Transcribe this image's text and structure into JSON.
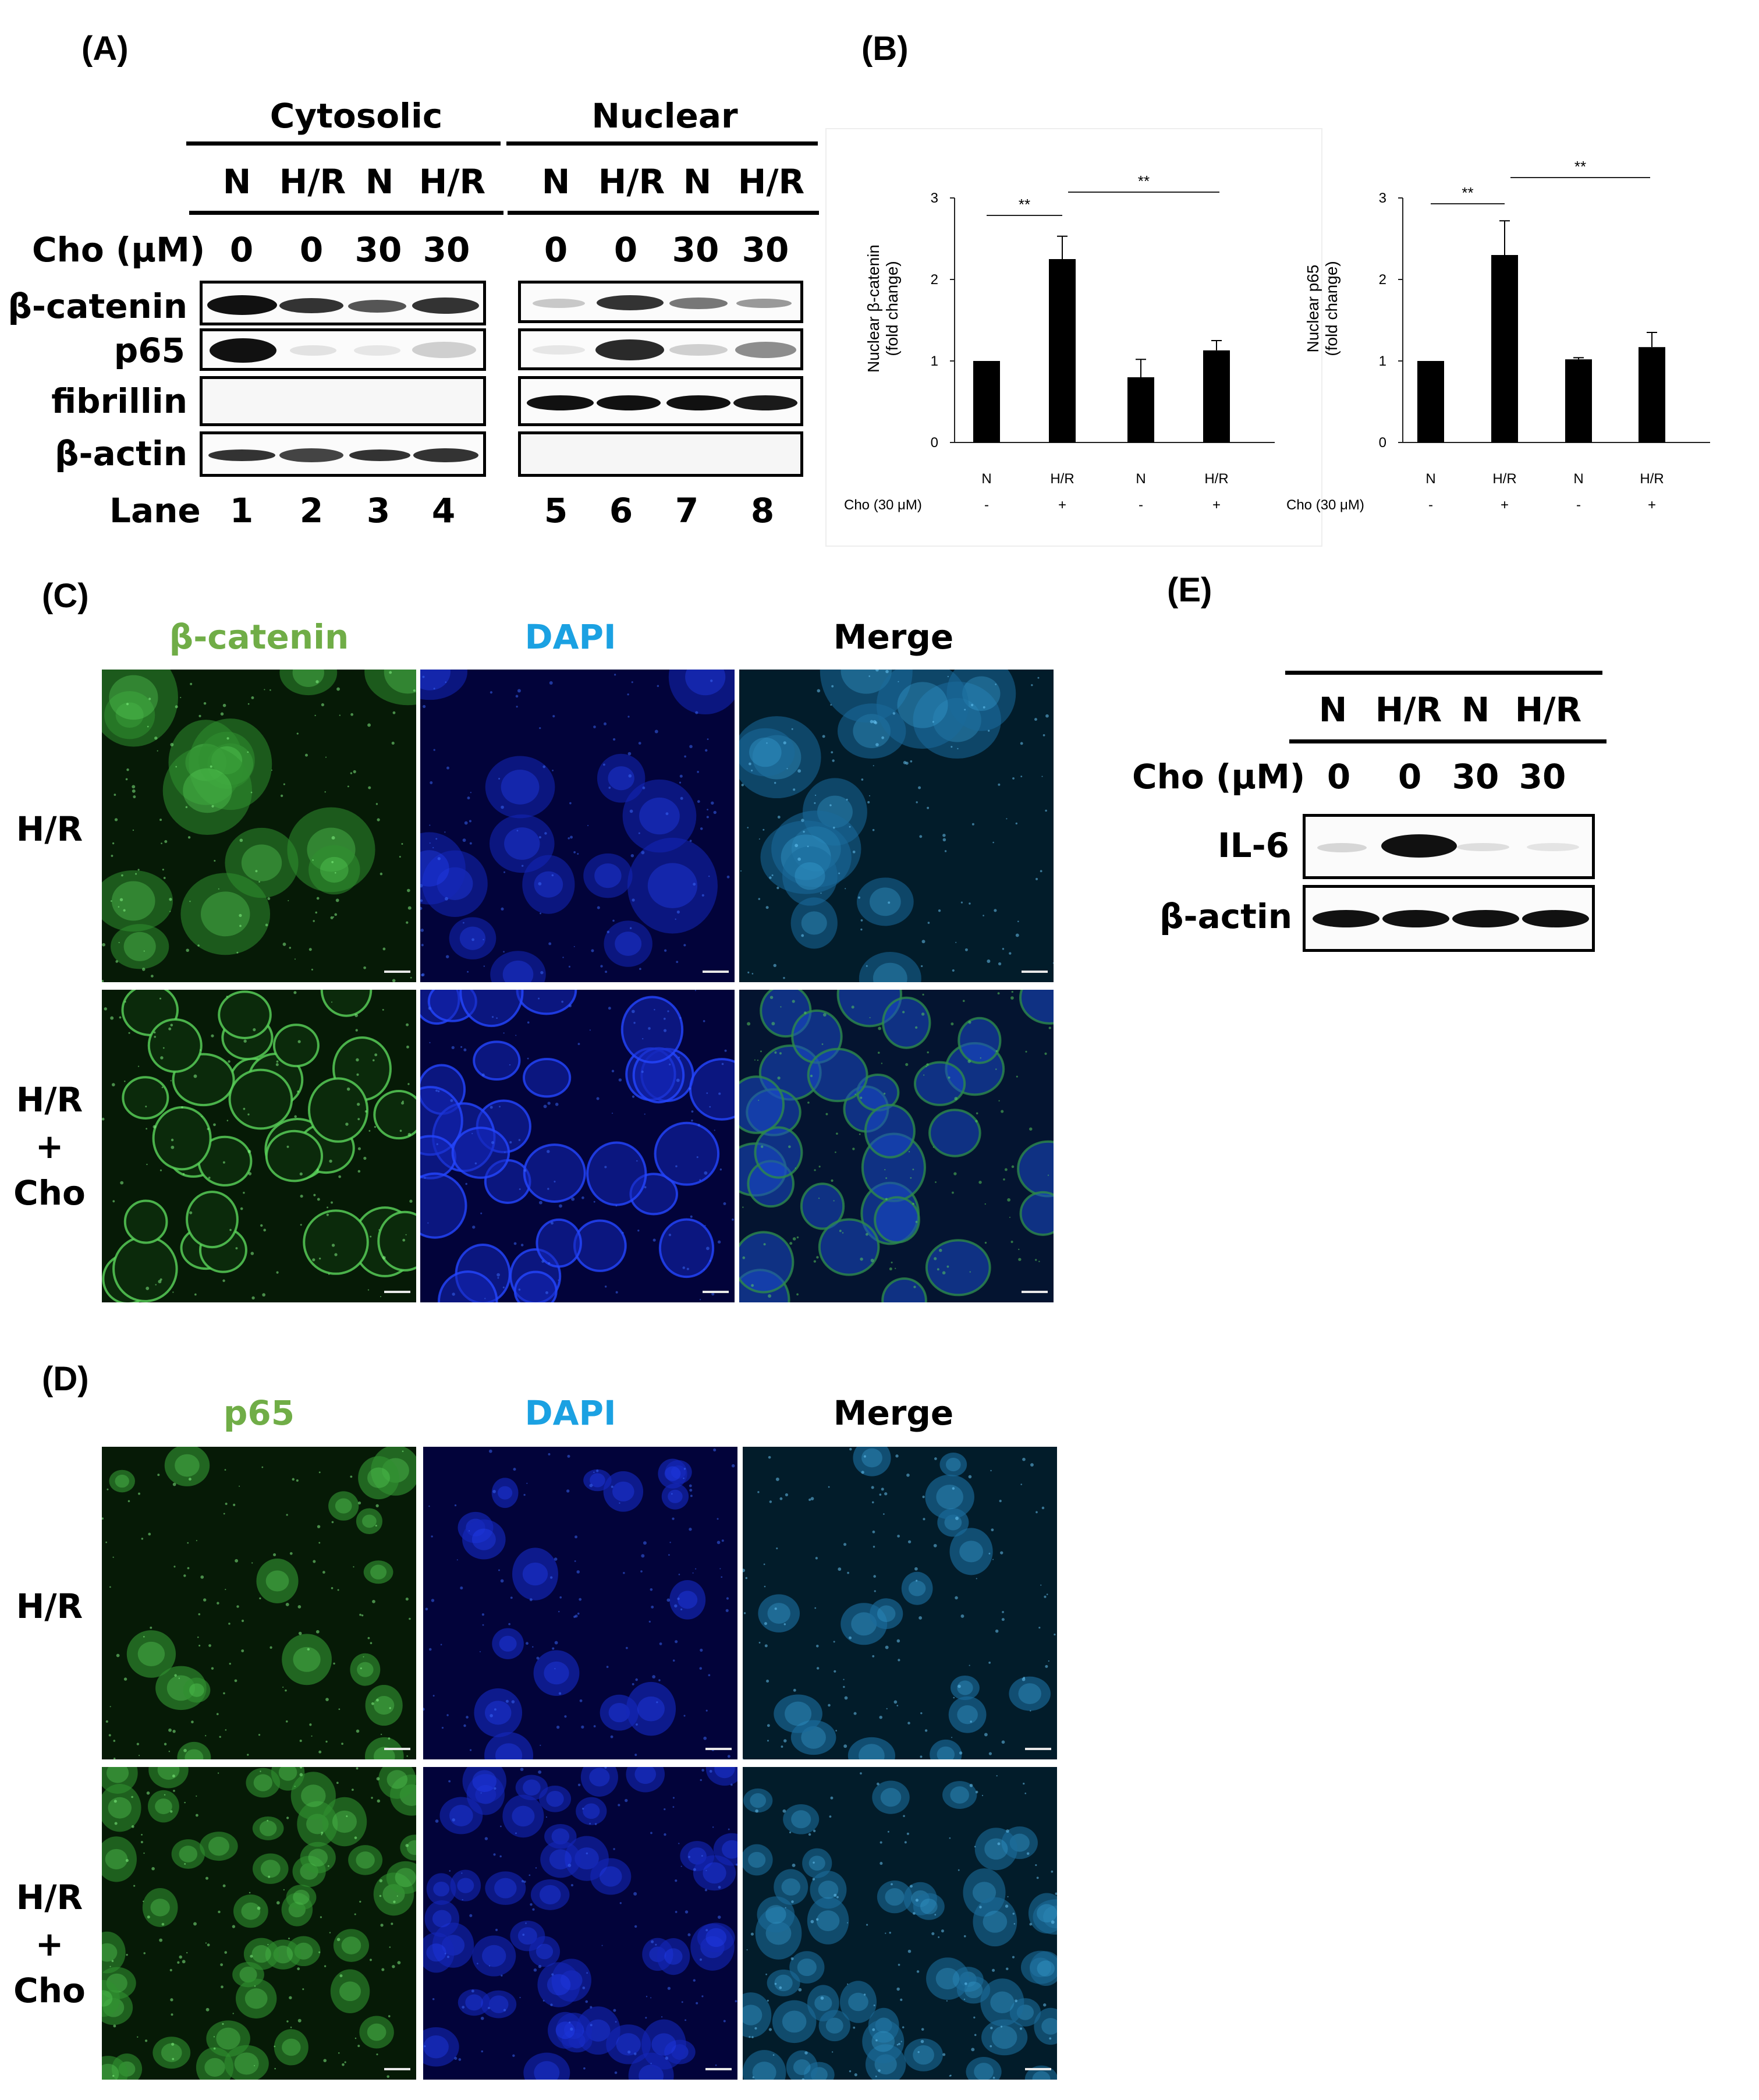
{
  "labels": {
    "a": "(A)",
    "b": "(B)",
    "c": "(C)",
    "d": "(D)",
    "e": "(E)"
  },
  "panel_a": {
    "cytosolic": "Cytosolic",
    "nuclear": "Nuclear",
    "conditions": [
      "N",
      "H/R",
      "N",
      "H/R",
      "N",
      "H/R",
      "N",
      "H/R"
    ],
    "cho_label": "Cho (μM)",
    "cho_values": [
      "0",
      "0",
      "30",
      "30",
      "0",
      "0",
      "30",
      "30"
    ],
    "rows": [
      "β-catenin",
      "p65",
      "fibrillin",
      "β-actin"
    ],
    "lane_label": "Lane",
    "lanes": [
      "1",
      "2",
      "3",
      "4",
      "5",
      "6",
      "7",
      "8"
    ]
  },
  "panel_c": {
    "col_titles": [
      "β-catenin",
      "DAPI",
      "Merge"
    ],
    "row_hr": "H/R",
    "row_hrcho": [
      "H/R",
      "+",
      "Cho"
    ]
  },
  "panel_d": {
    "col_titles": [
      "p65",
      "DAPI",
      "Merge"
    ],
    "row_hr": "H/R",
    "row_hrcho": [
      "H/R",
      "+",
      "Cho"
    ]
  },
  "panel_e": {
    "conditions": [
      "N",
      "H/R",
      "N",
      "H/R"
    ],
    "cho_label": "Cho (μM)",
    "cho_values": [
      "0",
      "0",
      "30",
      "30"
    ],
    "rows": [
      "IL-6",
      "β-actin"
    ]
  },
  "colors": {
    "green": "#70ad47",
    "blue": "#1ba1e2",
    "bar": "#000000"
  },
  "chart_data": [
    {
      "type": "bar",
      "categories": [
        "N",
        "H/R",
        "N",
        "H/R"
      ],
      "values": [
        1.0,
        2.25,
        0.8,
        1.13
      ],
      "errors": [
        0,
        0.28,
        0.22,
        0.12
      ],
      "ylabel": "Nuclear β-catenin (fold change)",
      "ylim": [
        0,
        3
      ],
      "yticks": [
        "0",
        "1",
        "2",
        "3"
      ],
      "cho_label": "Cho (30 μM)",
      "cho_signs": [
        "-",
        "+",
        "-",
        "+"
      ],
      "significance": [
        "**",
        "**"
      ]
    },
    {
      "type": "bar",
      "categories": [
        "N",
        "H/R",
        "N",
        "H/R"
      ],
      "values": [
        1.0,
        2.3,
        1.02,
        1.17
      ],
      "errors": [
        0,
        0.42,
        0.02,
        0.18
      ],
      "ylabel": "Nuclear p65 (fold change)",
      "ylim": [
        0,
        3
      ],
      "yticks": [
        "0",
        "1",
        "2",
        "3"
      ],
      "cho_label": "Cho (30 μM)",
      "cho_signs": [
        "-",
        "+",
        "-",
        "+"
      ],
      "significance": [
        "**",
        "**"
      ]
    }
  ]
}
